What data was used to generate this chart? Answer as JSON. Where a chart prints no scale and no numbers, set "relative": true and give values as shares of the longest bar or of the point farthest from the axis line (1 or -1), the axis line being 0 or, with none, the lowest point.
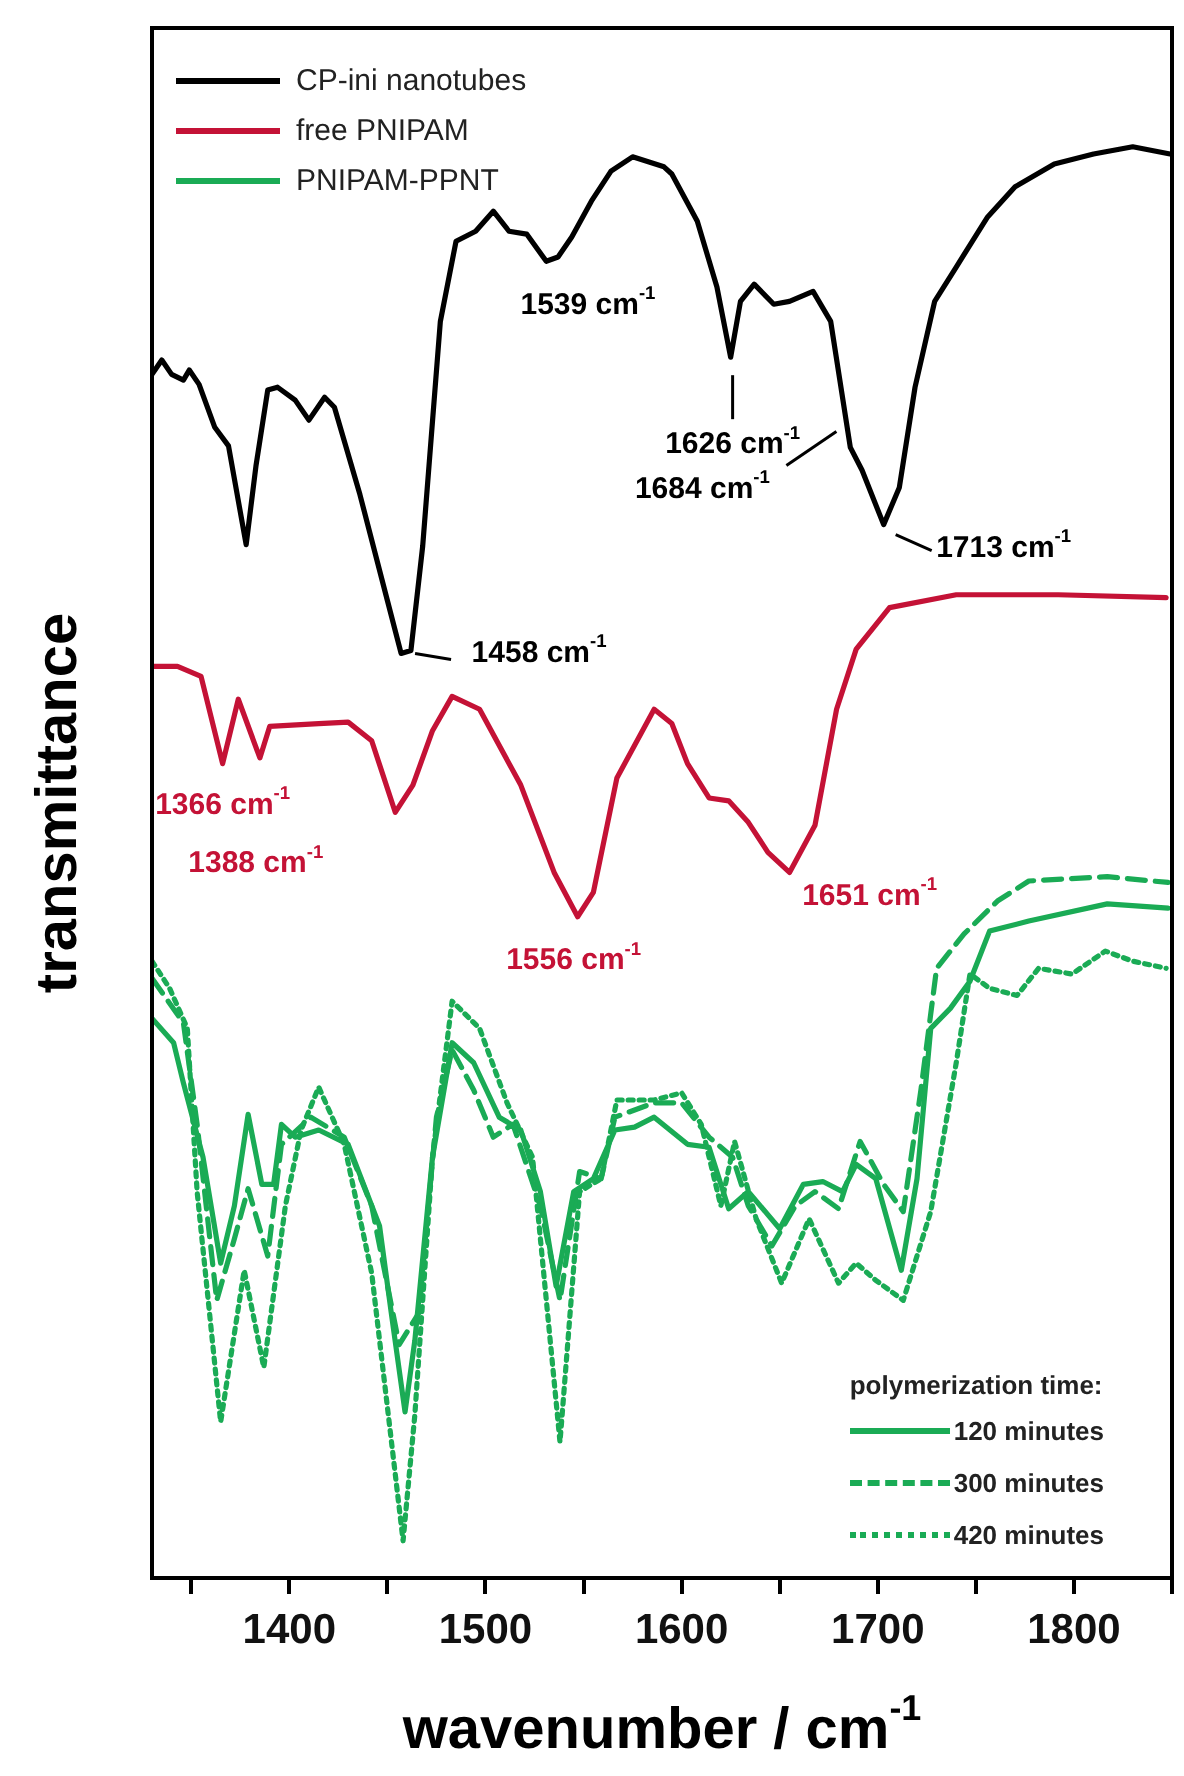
{
  "chart_data": {
    "type": "line",
    "relative": true,
    "xlabel": "wavenumber / cm$^{-1}$",
    "ylabel": "transmittance",
    "legend": "top left",
    "legend_title": "polymerization time:",
    "grid": false,
    "xlim": [
      1330,
      1850
    ],
    "xticks": [
      {
        "value": 1350,
        "label": null
      },
      1400,
      {
        "value": 1450,
        "label": null
      },
      1500,
      {
        "value": 1550,
        "label": null
      },
      1600,
      {
        "value": 1650,
        "label": null
      },
      1700,
      {
        "value": 1750,
        "label": null
      },
      1800,
      {
        "value": 1850,
        "label": null
      }
    ],
    "series": [
      {
        "name": "CP-ini nanotubes",
        "color": "#000000",
        "x": [
          1330,
          1335,
          1340,
          1346,
          1349,
          1354,
          1362,
          1369,
          1378,
          1383,
          1389,
          1394,
          1403,
          1410,
          1418,
          1423,
          1436,
          1450,
          1457,
          1462,
          1468,
          1477,
          1485,
          1495,
          1504,
          1512,
          1521,
          1531,
          1537,
          1544,
          1554,
          1564,
          1575,
          1591,
          1595,
          1608,
          1618,
          1625,
          1630,
          1637,
          1647,
          1655,
          1667,
          1676,
          1686,
          1692,
          1703,
          1711,
          1719,
          1729,
          1740,
          1756,
          1770,
          1790,
          1810,
          1830,
          1849
        ],
        "values": [
          0.841,
          0.851,
          0.841,
          0.837,
          0.844,
          0.834,
          0.804,
          0.791,
          0.722,
          0.777,
          0.83,
          0.832,
          0.823,
          0.809,
          0.825,
          0.818,
          0.757,
          0.683,
          0.646,
          0.648,
          0.721,
          0.878,
          0.934,
          0.941,
          0.955,
          0.941,
          0.939,
          0.92,
          0.923,
          0.937,
          0.962,
          0.983,
          0.993,
          0.986,
          0.981,
          0.948,
          0.902,
          0.853,
          0.892,
          0.904,
          0.89,
          0.892,
          0.899,
          0.878,
          0.79,
          0.774,
          0.736,
          0.762,
          0.832,
          0.892,
          0.916,
          0.951,
          0.972,
          0.988,
          0.995,
          1,
          0.995
        ]
      },
      {
        "name": "free PNIPAM",
        "color": "#c41236",
        "x": [
          1330,
          1343,
          1355,
          1366,
          1374,
          1385,
          1390,
          1415,
          1430,
          1442,
          1454,
          1463,
          1473,
          1483,
          1497,
          1518,
          1535,
          1547,
          1555,
          1567,
          1586,
          1595,
          1603,
          1614,
          1624,
          1634,
          1644,
          1655,
          1668,
          1679,
          1689,
          1706,
          1740,
          1792,
          1847
        ],
        "values": [
          0.637,
          0.637,
          0.63,
          0.569,
          0.614,
          0.573,
          0.595,
          0.597,
          0.598,
          0.585,
          0.535,
          0.554,
          0.592,
          0.616,
          0.607,
          0.554,
          0.493,
          0.462,
          0.479,
          0.559,
          0.607,
          0.597,
          0.569,
          0.545,
          0.543,
          0.528,
          0.507,
          0.493,
          0.526,
          0.607,
          0.649,
          0.678,
          0.687,
          0.687,
          0.685
        ]
      },
      {
        "name": "120 minutes",
        "color": "#1aab55",
        "line_style": "solid",
        "x": [
          1330,
          1341,
          1346,
          1356,
          1365,
          1372,
          1379,
          1386,
          1392,
          1396,
          1403,
          1415,
          1430,
          1446,
          1452,
          1459,
          1464,
          1473,
          1483,
          1494,
          1507,
          1518,
          1528,
          1536,
          1545,
          1555,
          1566,
          1576,
          1586,
          1603,
          1614,
          1624,
          1634,
          1650,
          1662,
          1672,
          1682,
          1689,
          1699,
          1712,
          1720,
          1727,
          1737,
          1747,
          1757,
          1777,
          1817,
          1848
        ],
        "values": [
          0.391,
          0.374,
          0.346,
          0.294,
          0.22,
          0.26,
          0.324,
          0.275,
          0.275,
          0.317,
          0.308,
          0.313,
          0.303,
          0.246,
          0.185,
          0.116,
          0.166,
          0.294,
          0.374,
          0.36,
          0.322,
          0.313,
          0.27,
          0.204,
          0.27,
          0.279,
          0.313,
          0.315,
          0.322,
          0.303,
          0.301,
          0.258,
          0.27,
          0.244,
          0.275,
          0.277,
          0.27,
          0.289,
          0.279,
          0.215,
          0.279,
          0.384,
          0.398,
          0.417,
          0.452,
          0.459,
          0.471,
          0.468
        ]
      },
      {
        "name": "300 minutes",
        "color": "#1aab55",
        "line_style": "dashed",
        "x": [
          1330,
          1346,
          1353,
          1363,
          1372,
          1379,
          1389,
          1396,
          1411,
          1428,
          1442,
          1456,
          1466,
          1475,
          1483,
          1494,
          1504,
          1514,
          1528,
          1538,
          1548,
          1559,
          1566,
          1586,
          1600,
          1614,
          1626,
          1634,
          1646,
          1658,
          1668,
          1680,
          1691,
          1703,
          1713,
          1722,
          1730,
          1744,
          1761,
          1777,
          1817,
          1848
        ],
        "values": [
          0.419,
          0.388,
          0.317,
          0.194,
          0.237,
          0.272,
          0.225,
          0.303,
          0.322,
          0.308,
          0.26,
          0.163,
          0.185,
          0.322,
          0.369,
          0.341,
          0.308,
          0.317,
          0.26,
          0.194,
          0.284,
          0.279,
          0.322,
          0.332,
          0.332,
          0.308,
          0.294,
          0.26,
          0.232,
          0.26,
          0.27,
          0.258,
          0.305,
          0.275,
          0.256,
          0.341,
          0.426,
          0.45,
          0.473,
          0.487,
          0.49,
          0.486
        ]
      },
      {
        "name": "420 minutes",
        "color": "#1aab55",
        "line_style": "dotted",
        "x": [
          1330,
          1339,
          1348,
          1353,
          1365,
          1377,
          1387,
          1398,
          1406,
          1415,
          1428,
          1442,
          1458,
          1464,
          1473,
          1483,
          1497,
          1511,
          1524,
          1538,
          1548,
          1559,
          1567,
          1586,
          1600,
          1610,
          1620,
          1627,
          1638,
          1651,
          1665,
          1680,
          1689,
          1699,
          1713,
          1727,
          1740,
          1747,
          1757,
          1771,
          1782,
          1799,
          1816,
          1830,
          1847
        ],
        "values": [
          0.431,
          0.412,
          0.384,
          0.27,
          0.109,
          0.215,
          0.147,
          0.26,
          0.313,
          0.343,
          0.303,
          0.213,
          0.026,
          0.114,
          0.294,
          0.403,
          0.384,
          0.332,
          0.294,
          0.095,
          0.27,
          0.279,
          0.334,
          0.334,
          0.339,
          0.317,
          0.26,
          0.305,
          0.251,
          0.206,
          0.251,
          0.206,
          0.22,
          0.208,
          0.194,
          0.256,
          0.36,
          0.422,
          0.412,
          0.407,
          0.426,
          0.422,
          0.438,
          0.431,
          0.426
        ]
      }
    ],
    "annotations": [
      "PNIPAM-PPNT",
      {
        "text": "1539 cm$^{-1}$",
        "x": 1539,
        "y": 0.92
      },
      {
        "text": "1458 cm$^{-1}$",
        "x": 1458,
        "y": 0.646
      },
      {
        "text": "1626 cm$^{-1}$",
        "x": 1626,
        "y": 0.853
      },
      {
        "text": "1684 cm$^{-1}$",
        "x": 1684,
        "y": 0.808
      },
      {
        "text": "1713 cm$^{-1}$",
        "x": 1703,
        "y": 0.736
      },
      {
        "text": "1366 cm$^{-1}$",
        "x": 1366,
        "y": 0.569
      },
      {
        "text": "1388 cm$^{-1}$",
        "x": 1388,
        "y": 0.573
      },
      {
        "text": "1556 cm$^{-1}$",
        "x": 1547,
        "y": 0.462
      },
      {
        "text": "1651 cm$^{-1}$",
        "x": 1651,
        "y": 0.493
      }
    ]
  }
}
